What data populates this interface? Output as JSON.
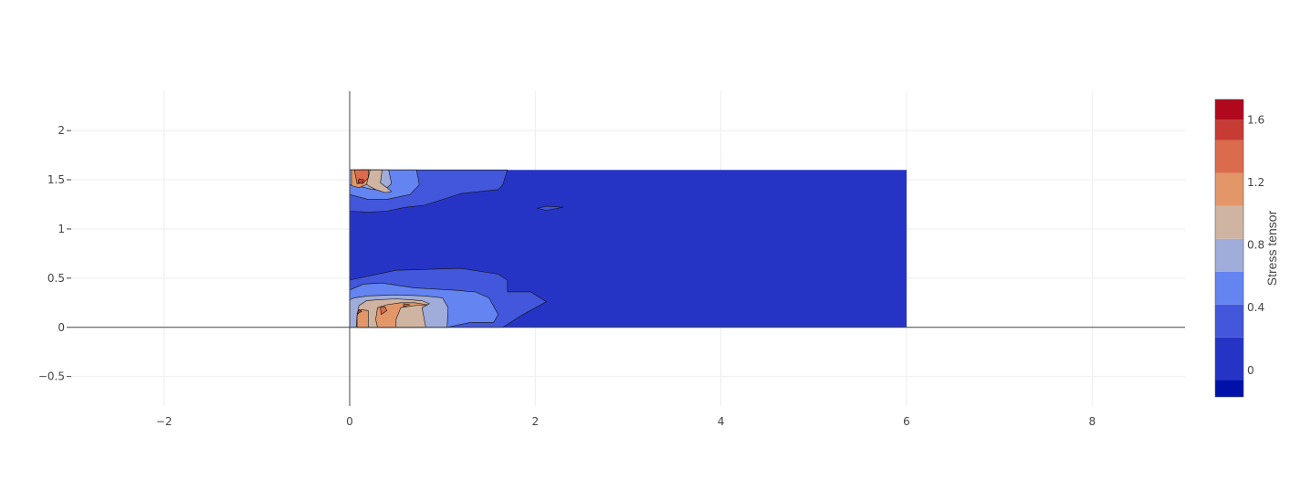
{
  "chart_data": {
    "type": "contour",
    "title": "",
    "xlabel": "",
    "ylabel": "",
    "xlim": [
      -3,
      9
    ],
    "ylim": [
      -0.8,
      2.4
    ],
    "x_ticks": [
      -2,
      0,
      2,
      4,
      6,
      8
    ],
    "x_tick_labels": [
      "−2",
      "0",
      "2",
      "4",
      "6",
      "8"
    ],
    "y_ticks": [
      -0.5,
      0,
      0.5,
      1,
      1.5,
      2
    ],
    "y_tick_labels": [
      "−0.5",
      "0",
      "0.5",
      "1",
      "1.5",
      "2"
    ],
    "grid": true,
    "domain": {
      "x": [
        0,
        6
      ],
      "y": [
        0,
        1.6
      ]
    },
    "colorbar": {
      "title": "Stress tensor",
      "range": [
        -0.17,
        1.73
      ],
      "tick_values": [
        0,
        0.4,
        0.8,
        1.2,
        1.6
      ],
      "tick_labels": [
        "0",
        "0.4",
        "0.8",
        "1.2",
        "1.6"
      ],
      "levels": [
        -0.17,
        -0.06,
        0.21,
        0.42,
        0.63,
        0.84,
        1.05,
        1.26,
        1.47,
        1.6,
        1.73
      ],
      "colors": [
        "#0011aa",
        "#2634c6",
        "#4257db",
        "#6384f1",
        "#a0acd9",
        "#cfb4a1",
        "#e39769",
        "#da6b4c",
        "#c63b33",
        "#b0091e"
      ]
    },
    "regions": [
      {
        "level": 1,
        "polygon": [
          [
            0,
            0
          ],
          [
            6,
            0
          ],
          [
            6,
            1.6
          ],
          [
            0,
            1.6
          ]
        ]
      },
      {
        "level": 2,
        "polygon": [
          [
            0,
            1.6
          ],
          [
            1.7,
            1.6
          ],
          [
            1.65,
            1.45
          ],
          [
            1.6,
            1.4
          ],
          [
            1.2,
            1.36
          ],
          [
            0.8,
            1.24
          ],
          [
            0.6,
            1.22
          ],
          [
            0.4,
            1.18
          ],
          [
            0.2,
            1.17
          ],
          [
            0,
            1.18
          ]
        ]
      },
      {
        "level": 2,
        "polygon": [
          [
            0,
            0
          ],
          [
            1.65,
            0
          ],
          [
            1.85,
            0.12
          ],
          [
            2.12,
            0.26
          ],
          [
            1.95,
            0.36
          ],
          [
            1.7,
            0.36
          ],
          [
            1.7,
            0.48
          ],
          [
            1.6,
            0.54
          ],
          [
            1.2,
            0.6
          ],
          [
            0.5,
            0.58
          ],
          [
            0,
            0.48
          ]
        ]
      },
      {
        "level": 2,
        "polygon": [
          [
            2.02,
            1.21
          ],
          [
            2.12,
            1.23
          ],
          [
            2.3,
            1.22
          ],
          [
            2.12,
            1.19
          ]
        ]
      },
      {
        "level": 3,
        "polygon": [
          [
            0,
            1.6
          ],
          [
            0.72,
            1.6
          ],
          [
            0.75,
            1.45
          ],
          [
            0.65,
            1.35
          ],
          [
            0.4,
            1.3
          ],
          [
            0.2,
            1.3
          ],
          [
            0,
            1.35
          ]
        ]
      },
      {
        "level": 3,
        "polygon": [
          [
            0,
            0
          ],
          [
            1.05,
            0
          ],
          [
            1.3,
            0.05
          ],
          [
            1.55,
            0.05
          ],
          [
            1.6,
            0.13
          ],
          [
            1.5,
            0.3
          ],
          [
            1.35,
            0.36
          ],
          [
            1.1,
            0.38
          ],
          [
            0.7,
            0.4
          ],
          [
            0.35,
            0.45
          ],
          [
            0.15,
            0.44
          ],
          [
            0,
            0.38
          ]
        ]
      },
      {
        "level": 4,
        "polygon": [
          [
            0,
            1.6
          ],
          [
            0.42,
            1.6
          ],
          [
            0.45,
            1.46
          ],
          [
            0.38,
            1.4
          ],
          [
            0.25,
            1.4
          ],
          [
            0.12,
            1.43
          ],
          [
            0,
            1.45
          ]
        ]
      },
      {
        "level": 4,
        "polygon": [
          [
            0,
            0
          ],
          [
            1.05,
            0
          ],
          [
            1.06,
            0.2
          ],
          [
            1.0,
            0.3
          ],
          [
            0.8,
            0.32
          ],
          [
            0.5,
            0.33
          ],
          [
            0.2,
            0.32
          ],
          [
            0.05,
            0.3
          ],
          [
            0,
            0.28
          ]
        ]
      },
      {
        "level": 5,
        "polygon": [
          [
            0.12,
            1.6
          ],
          [
            0.35,
            1.6
          ],
          [
            0.33,
            1.47
          ],
          [
            0.4,
            1.42
          ],
          [
            0.45,
            1.38
          ],
          [
            0.38,
            1.37
          ],
          [
            0.28,
            1.4
          ],
          [
            0.2,
            1.44
          ],
          [
            0.15,
            1.5
          ]
        ]
      },
      {
        "level": 5,
        "polygon": [
          [
            0.07,
            0
          ],
          [
            0.82,
            0
          ],
          [
            0.8,
            0.1
          ],
          [
            0.78,
            0.2
          ],
          [
            0.86,
            0.24
          ],
          [
            0.78,
            0.27
          ],
          [
            0.65,
            0.28
          ],
          [
            0.5,
            0.29
          ],
          [
            0.3,
            0.28
          ],
          [
            0.18,
            0.27
          ],
          [
            0.1,
            0.22
          ],
          [
            0.08,
            0.12
          ]
        ]
      },
      {
        "level": 6,
        "polygon": [
          [
            0.02,
            1.6
          ],
          [
            0.22,
            1.6
          ],
          [
            0.2,
            1.52
          ],
          [
            0.18,
            1.45
          ],
          [
            0.1,
            1.42
          ],
          [
            0.02,
            1.44
          ]
        ]
      },
      {
        "level": 6,
        "polygon": [
          [
            0.08,
            0
          ],
          [
            0.2,
            0
          ],
          [
            0.2,
            0.17
          ],
          [
            0.12,
            0.18
          ],
          [
            0.08,
            0.12
          ]
        ]
      },
      {
        "level": 6,
        "polygon": [
          [
            0.3,
            0
          ],
          [
            0.5,
            0
          ],
          [
            0.5,
            0.08
          ],
          [
            0.55,
            0.2
          ],
          [
            0.7,
            0.22
          ],
          [
            0.84,
            0.23
          ],
          [
            0.7,
            0.25
          ],
          [
            0.55,
            0.25
          ],
          [
            0.4,
            0.23
          ],
          [
            0.3,
            0.2
          ],
          [
            0.28,
            0.08
          ]
        ]
      },
      {
        "level": 7,
        "polygon": [
          [
            0.05,
            1.6
          ],
          [
            0.2,
            1.6
          ],
          [
            0.2,
            1.52
          ],
          [
            0.15,
            1.47
          ],
          [
            0.08,
            1.46
          ]
        ]
      },
      {
        "level": 7,
        "polygon": [
          [
            0.34,
            0.13
          ],
          [
            0.4,
            0.17
          ],
          [
            0.38,
            0.21
          ],
          [
            0.33,
            0.2
          ]
        ]
      },
      {
        "level": 7,
        "polygon": [
          [
            0.58,
            0.21
          ],
          [
            0.65,
            0.23
          ],
          [
            0.58,
            0.24
          ]
        ]
      },
      {
        "level": 8,
        "polygon": [
          [
            0.1,
            1.51
          ],
          [
            0.15,
            1.5
          ],
          [
            0.14,
            1.46
          ],
          [
            0.09,
            1.47
          ]
        ]
      },
      {
        "level": 8,
        "polygon": [
          [
            0.08,
            0.14
          ],
          [
            0.13,
            0.16
          ],
          [
            0.1,
            0.18
          ]
        ]
      }
    ]
  }
}
